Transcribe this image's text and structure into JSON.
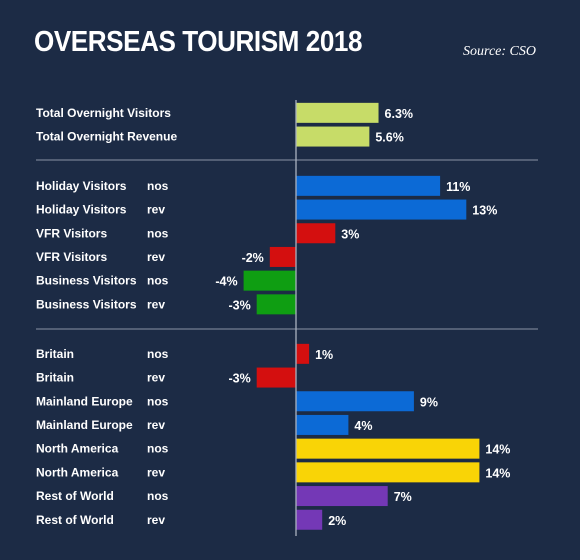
{
  "header": {
    "title": "OVERSEAS TOURISM 2018",
    "source": "Source: CSO"
  },
  "colors": {
    "background": "#1c2b45",
    "total": "#c7dc68",
    "holiday": "#0c6ad6",
    "decline": "#d40f0f",
    "business": "#0f9e12",
    "growth": "#f9d406",
    "purple": "#7438b6",
    "axis": "#aab2c0",
    "separator": "#8a93a5"
  },
  "chart_data": {
    "type": "bar",
    "orientation": "horizontal",
    "unit": "%",
    "xlim": [
      -5,
      15
    ],
    "groups": [
      {
        "rows": [
          {
            "label": "Total Overnight Visitors",
            "metric": "",
            "value": 6.3,
            "display": "6.3%",
            "color": "#c7dc68"
          },
          {
            "label": "Total Overnight Revenue",
            "metric": "",
            "value": 5.6,
            "display": "5.6%",
            "color": "#c7dc68"
          }
        ]
      },
      {
        "rows": [
          {
            "label": "Holiday Visitors",
            "metric": "nos",
            "value": 11,
            "display": "11%",
            "color": "#0c6ad6"
          },
          {
            "label": "Holiday Visitors",
            "metric": "rev",
            "value": 13,
            "display": "13%",
            "color": "#0c6ad6"
          },
          {
            "label": "VFR Visitors",
            "metric": "nos",
            "value": 3,
            "display": "3%",
            "color": "#d40f0f"
          },
          {
            "label": "VFR Visitors",
            "metric": "rev",
            "value": -2,
            "display": "-2%",
            "color": "#d40f0f"
          },
          {
            "label": "Business Visitors",
            "metric": "nos",
            "value": -4,
            "display": "-4%",
            "color": "#0f9e12"
          },
          {
            "label": "Business Visitors",
            "metric": "rev",
            "value": -3,
            "display": "-3%",
            "color": "#0f9e12"
          }
        ]
      },
      {
        "rows": [
          {
            "label": "Britain",
            "metric": "nos",
            "value": 1,
            "display": "1%",
            "color": "#d40f0f"
          },
          {
            "label": "Britain",
            "metric": "rev",
            "value": -3,
            "display": "-3%",
            "color": "#d40f0f"
          },
          {
            "label": "Mainland Europe",
            "metric": "nos",
            "value": 9,
            "display": "9%",
            "color": "#0c6ad6"
          },
          {
            "label": "Mainland Europe",
            "metric": "rev",
            "value": 4,
            "display": "4%",
            "color": "#0c6ad6"
          },
          {
            "label": "North America",
            "metric": "nos",
            "value": 14,
            "display": "14%",
            "color": "#f9d406"
          },
          {
            "label": "North America",
            "metric": "rev",
            "value": 14,
            "display": "14%",
            "color": "#f9d406"
          },
          {
            "label": "Rest of World",
            "metric": "nos",
            "value": 7,
            "display": "7%",
            "color": "#7438b6"
          },
          {
            "label": "Rest of World",
            "metric": "rev",
            "value": 2,
            "display": "2%",
            "color": "#7438b6"
          }
        ]
      }
    ]
  }
}
